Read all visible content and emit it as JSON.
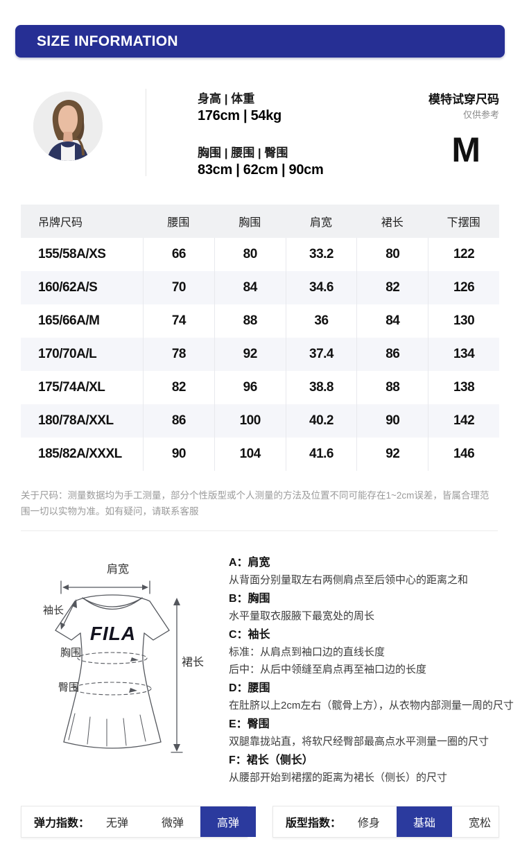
{
  "header": {
    "title": "SIZE INFORMATION"
  },
  "model": {
    "height_weight_label": "身高 | 体重",
    "height_weight_value": "176cm | 54kg",
    "measurements_label": "胸围 | 腰围 | 臀围",
    "measurements_value": "83cm | 62cm | 90cm",
    "fit_label": "模特试穿尺码",
    "fit_note": "仅供参考",
    "fit_size": "M"
  },
  "size_table": {
    "columns": [
      "吊牌尺码",
      "腰围",
      "胸围",
      "肩宽",
      "裙长",
      "下摆围"
    ],
    "rows": [
      [
        "155/58A/XS",
        "66",
        "80",
        "33.2",
        "80",
        "122"
      ],
      [
        "160/62A/S",
        "70",
        "84",
        "34.6",
        "82",
        "126"
      ],
      [
        "165/66A/M",
        "74",
        "88",
        "36",
        "84",
        "130"
      ],
      [
        "170/70A/L",
        "78",
        "92",
        "37.4",
        "86",
        "134"
      ],
      [
        "175/74A/XL",
        "82",
        "96",
        "38.8",
        "88",
        "138"
      ],
      [
        "180/78A/XXL",
        "86",
        "100",
        "40.2",
        "90",
        "142"
      ],
      [
        "185/82A/XXXL",
        "90",
        "104",
        "41.6",
        "92",
        "146"
      ]
    ]
  },
  "note": {
    "text": "关于尺码：测量数据均为手工测量，部分个性版型或个人测量的方法及位置不同可能存在1~2cm误差，皆属合理范围一切以实物为准。如有疑问，请联系客服"
  },
  "diagram": {
    "logo": "FILA",
    "labels": {
      "shoulder": "肩宽",
      "sleeve": "袖长",
      "bust": "胸围",
      "hip": "臀围",
      "skirt_length": "裙长"
    }
  },
  "measure_guide": {
    "items": [
      {
        "title": "A：肩宽",
        "lines": [
          "从背面分别量取左右两侧肩点至后领中心的距离之和"
        ]
      },
      {
        "title": "B：胸围",
        "lines": [
          "水平量取衣服腋下最宽处的周长"
        ]
      },
      {
        "title": "C：袖长",
        "lines": [
          "标准：从肩点到袖口边的直线长度",
          "后中：从后中领缝至肩点再至袖口边的长度"
        ]
      },
      {
        "title": "D：腰围",
        "lines": [
          "在肚脐以上2cm左右（髋骨上方），从衣物内部测量一周的尺寸"
        ]
      },
      {
        "title": "E：臀围",
        "lines": [
          "双腿靠拢站直，将软尺经臀部最高点水平测量一圈的尺寸"
        ]
      },
      {
        "title": "F：裙长（侧长）",
        "lines": [
          "从腰部开始到裙摆的距离为裙长（侧长）的尺寸"
        ]
      }
    ]
  },
  "indices": {
    "elasticity": {
      "label": "弹力指数：",
      "options": [
        "无弹",
        "微弹",
        "高弹"
      ],
      "selected": "高弹"
    },
    "fit_type": {
      "label": "版型指数：",
      "options": [
        "修身",
        "基础",
        "宽松"
      ],
      "selected": "基础"
    }
  },
  "colors": {
    "primary": "#262F94",
    "selected_cell": "#2B3A9E"
  }
}
